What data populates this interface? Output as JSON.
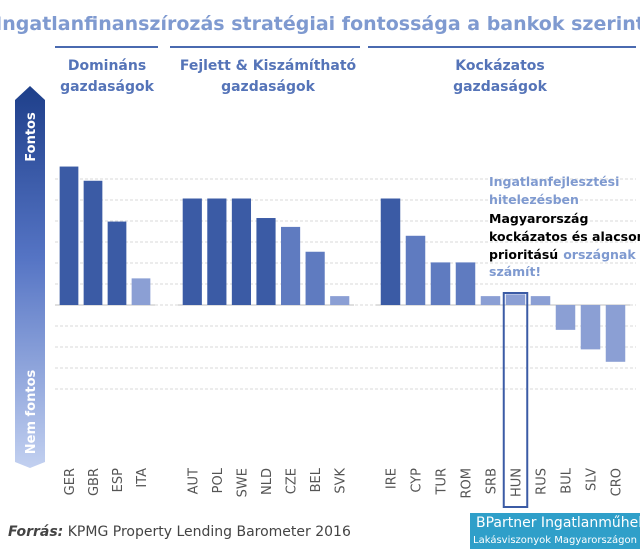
{
  "title": "Ingatlanfinanszírozás stratégiai fontossága a bankok szerint",
  "axis": {
    "top_label": "Fontos",
    "bottom_label": "Nem fontos"
  },
  "annotation": {
    "line1": "Ingatlanfejlesztési",
    "line2": "hitelezésben",
    "line3": "Magyarország",
    "line4": "kockázatos és alacsony",
    "line5a": "prioritású",
    "line5b": "országnak",
    "line6": "számít!"
  },
  "source": {
    "label": "Forrás:",
    "text": "KPMG Property Lending Barometer 2016"
  },
  "brand": {
    "line1": "BPartner Ingatlanműhely",
    "line2": "Lakásviszonyok Magyarországon"
  },
  "colors": {
    "bar_dark": "#3b5ba5",
    "bar_mid": "#5f7bc0",
    "bar_light": "#8b9fd4",
    "title": "#7f9ad0",
    "group_label": "#5574b8",
    "annotation_light": "#7f9ad0",
    "annotation_dark": "#000000",
    "highlight_border": "#3b5ba5",
    "arrow_top": "#1e3f8a",
    "arrow_bottom": "#b8c8ee",
    "brand_bg": "#2f9fc9"
  },
  "chart_data": {
    "type": "bar",
    "title": "Ingatlanfinanszírozás stratégiai fontossága a bankok szerint",
    "xlabel": "",
    "ylabel": "",
    "ylim": [
      -2.0,
      5.5
    ],
    "gridlines": true,
    "highlight": "HUN",
    "groups": [
      {
        "name_line1": "Domináns",
        "name_line2": "gazdaságok",
        "categories": [
          "GER",
          "GBR",
          "ESP",
          "ITA"
        ],
        "values": [
          3.9,
          3.5,
          2.35,
          0.75
        ]
      },
      {
        "name_line1": "Fejlett & Kiszámítható",
        "name_line2": "gazdaságok",
        "categories": [
          "AUT",
          "POL",
          "SWE",
          "NLD",
          "CZE",
          "BEL",
          "SVK"
        ],
        "values": [
          3.0,
          3.0,
          3.0,
          2.45,
          2.2,
          1.5,
          0.25
        ]
      },
      {
        "name_line1": "Kockázatos",
        "name_line2": "gazdaságok",
        "categories": [
          "IRE",
          "CYP",
          "TUR",
          "ROM",
          "SRB",
          "HUN",
          "RUS",
          "BUL",
          "SLV",
          "CRO"
        ],
        "values": [
          3.0,
          1.95,
          1.2,
          1.2,
          0.25,
          0.3,
          0.25,
          -0.7,
          -1.25,
          -1.6
        ]
      }
    ]
  }
}
